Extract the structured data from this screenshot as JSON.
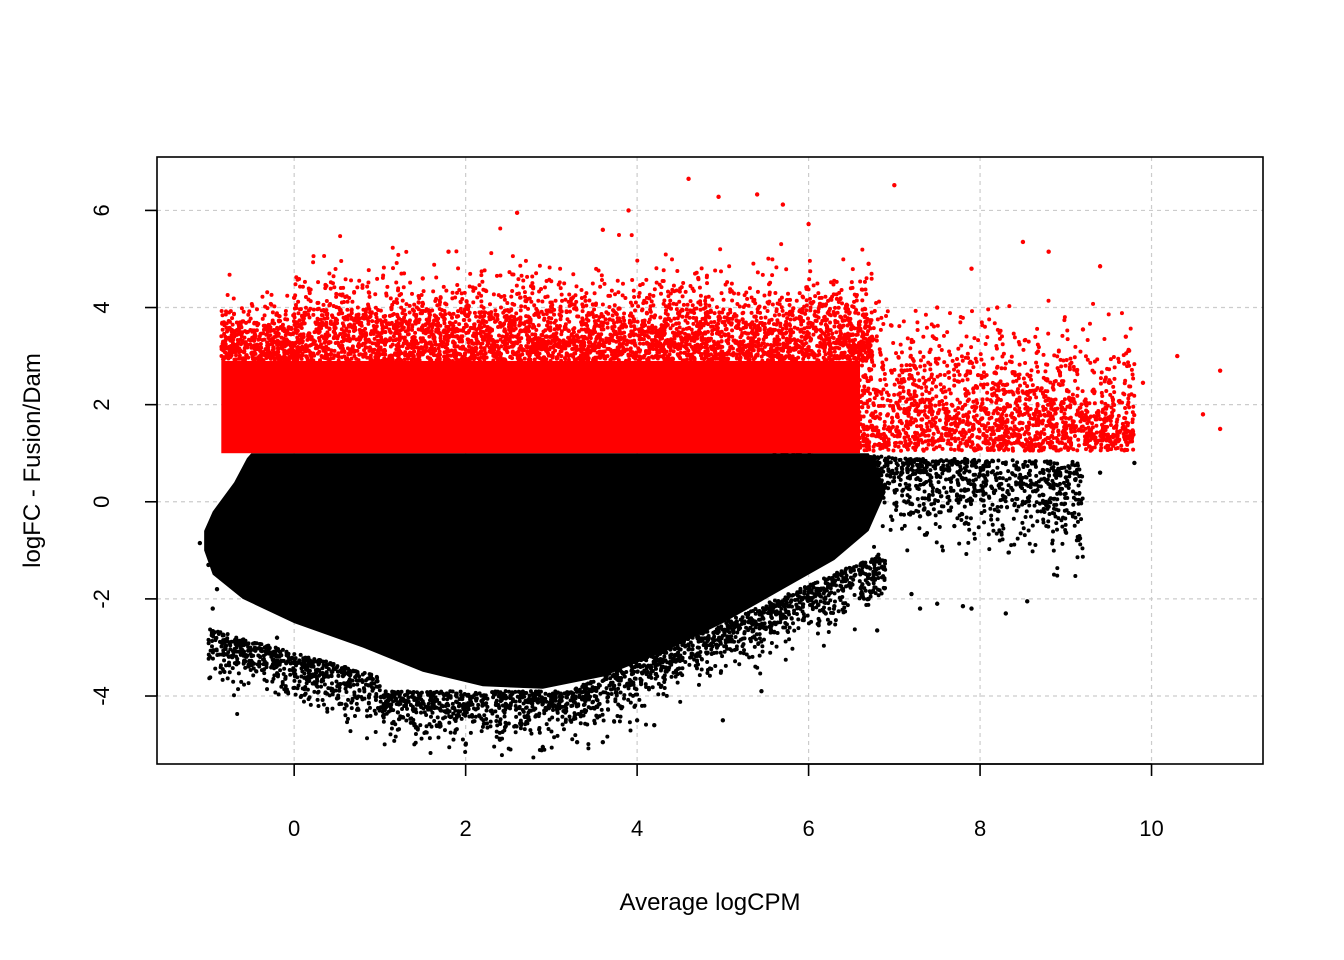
{
  "chart_data": {
    "type": "scatter",
    "title": "",
    "xlabel": "Average logCPM",
    "ylabel": "logFC - Fusion/Dam",
    "xlim": [
      -1.6,
      11.3
    ],
    "ylim": [
      -5.4,
      7.1
    ],
    "x_ticks": [
      0,
      2,
      4,
      6,
      8,
      10
    ],
    "y_ticks": [
      -4,
      -2,
      0,
      2,
      4,
      6
    ],
    "grid": true,
    "grid_style": "dashed light gray",
    "threshold_logFC": 1,
    "colors": {
      "above_threshold": "#ff0000",
      "below_threshold": "#000000",
      "grid": "#cccccc",
      "frame": "#000000"
    },
    "series": [
      {
        "name": "",
        "color": "#ff0000",
        "description": "points with logFC above about 1",
        "points": [
          [
            4.6,
            6.65
          ],
          [
            7.0,
            6.52
          ],
          [
            4.95,
            6.28
          ],
          [
            5.4,
            6.33
          ],
          [
            3.9,
            6.0
          ],
          [
            2.6,
            5.95
          ],
          [
            5.7,
            6.12
          ],
          [
            6.0,
            5.72
          ],
          [
            3.6,
            5.6
          ],
          [
            8.5,
            5.35
          ],
          [
            8.8,
            5.15
          ],
          [
            9.4,
            4.85
          ],
          [
            10.8,
            2.7
          ],
          [
            10.8,
            1.5
          ],
          [
            10.3,
            3.0
          ],
          [
            9.9,
            2.45
          ],
          [
            10.6,
            1.8
          ],
          [
            1.8,
            5.15
          ],
          [
            0.0,
            4.2
          ],
          [
            -0.7,
            3.4
          ],
          [
            -0.8,
            2.2
          ],
          [
            -0.3,
            3.6
          ],
          [
            1.5,
            4.6
          ],
          [
            6.7,
            4.9
          ],
          [
            7.5,
            4.0
          ],
          [
            8.2,
            4.0
          ],
          [
            9.7,
            3.4
          ],
          [
            9.2,
            3.55
          ],
          [
            7.9,
            4.8
          ]
        ],
        "dense_band": {
          "x_range": [
            -0.85,
            6.6
          ],
          "logFC_range": [
            1.0,
            2.9
          ]
        }
      },
      {
        "name": "",
        "color": "#000000",
        "description": "points with logFC at or below about 1",
        "points": [
          [
            -1.1,
            -0.85
          ],
          [
            -1.0,
            -1.3
          ],
          [
            -0.9,
            -1.8
          ],
          [
            -0.95,
            -2.2
          ],
          [
            -0.6,
            -2.9
          ],
          [
            -0.2,
            -2.8
          ],
          [
            0.5,
            -4.05
          ],
          [
            2.0,
            -5.0
          ],
          [
            2.9,
            -5.05
          ],
          [
            3.6,
            -4.95
          ],
          [
            2.4,
            -4.9
          ],
          [
            3.3,
            -4.95
          ],
          [
            5.0,
            -4.5
          ],
          [
            5.45,
            -3.9
          ],
          [
            4.2,
            -4.6
          ],
          [
            4.0,
            -4.5
          ],
          [
            6.2,
            -2.3
          ],
          [
            6.8,
            -2.65
          ],
          [
            6.3,
            -2.15
          ],
          [
            6.7,
            -2.0
          ],
          [
            7.3,
            -2.2
          ],
          [
            7.2,
            -1.9
          ],
          [
            7.8,
            -2.15
          ],
          [
            7.9,
            -2.2
          ],
          [
            8.3,
            -2.3
          ],
          [
            8.55,
            -2.05
          ],
          [
            7.5,
            -2.1
          ],
          [
            9.8,
            0.8
          ],
          [
            9.4,
            0.6
          ],
          [
            8.5,
            0.0
          ],
          [
            7.7,
            -0.5
          ],
          [
            7.3,
            -0.3
          ],
          [
            9.0,
            0.5
          ],
          [
            8.8,
            -0.1
          ]
        ],
        "dense_region": {
          "x_range": [
            -1.05,
            6.9
          ],
          "logFC_range": [
            -4.2,
            1.0
          ]
        }
      }
    ]
  },
  "axes": {
    "x_title": "Average logCPM",
    "y_title": "logFC - Fusion/Dam"
  }
}
